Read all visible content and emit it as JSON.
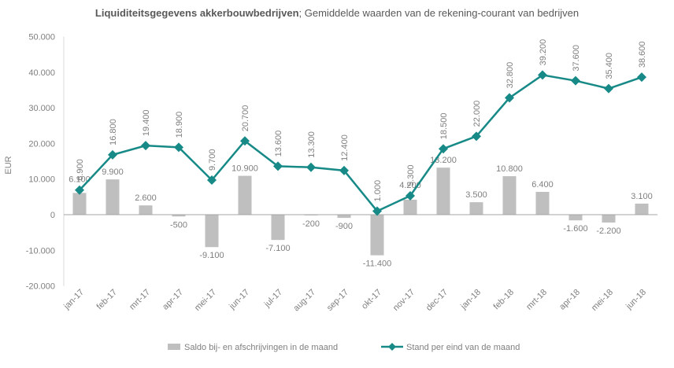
{
  "chart_data": {
    "type": "bar+line",
    "title_bold": "Liquiditeitsgegevens akkerbouwbedrijven",
    "title_rest": "; Gemiddelde waarden van de rekening-courant van bedrijven",
    "ylabel": "EUR",
    "ylim": [
      -20000,
      50000
    ],
    "yticks": [
      50000,
      40000,
      30000,
      20000,
      10000,
      0,
      -10000,
      -20000
    ],
    "ytick_labels": [
      "50.000",
      "40.000",
      "30.000",
      "20.000",
      "10.000",
      "0",
      "-10.000",
      "-20.000"
    ],
    "categories": [
      "jan-17",
      "feb-17",
      "mrt-17",
      "apr-17",
      "mei-17",
      "jun-17",
      "jul-17",
      "aug-17",
      "sep-17",
      "okt-17",
      "nov-17",
      "dec-17",
      "jan-18",
      "feb-18",
      "mrt-18",
      "apr-18",
      "mei-18",
      "jun-18"
    ],
    "series": [
      {
        "name": "Saldo bij- en afschrijvingen in de maand",
        "type": "bar",
        "color": "#bfbfbf",
        "values": [
          6100,
          9900,
          2600,
          -500,
          -9100,
          10900,
          -7100,
          -200,
          -900,
          -11400,
          4200,
          13200,
          3500,
          10800,
          6400,
          -1600,
          -2200,
          3100
        ],
        "labels": [
          "6.100",
          "9.900",
          "2.600",
          "-500",
          "-9.100",
          "10.900",
          "-7.100",
          "-200",
          "-900",
          "-11.400",
          "4.200",
          "13.200",
          "3.500",
          "10.800",
          "6.400",
          "-1.600",
          "-2.200",
          "3.100"
        ]
      },
      {
        "name": "Stand per eind van de maand",
        "type": "line",
        "color": "#178a87",
        "values": [
          6900,
          16800,
          19400,
          18900,
          9700,
          20700,
          13600,
          13300,
          12400,
          1000,
          5300,
          18500,
          22000,
          32800,
          39200,
          37600,
          35400,
          38600
        ],
        "labels": [
          "6.900",
          "16.800",
          "19.400",
          "18.900",
          "9.700",
          "20.700",
          "13.600",
          "13.300",
          "12.400",
          "1.000",
          "5.300",
          "18.500",
          "22.000",
          "32.800",
          "39.200",
          "37.600",
          "35.400",
          "38.600"
        ]
      }
    ],
    "legend": "bottom"
  }
}
